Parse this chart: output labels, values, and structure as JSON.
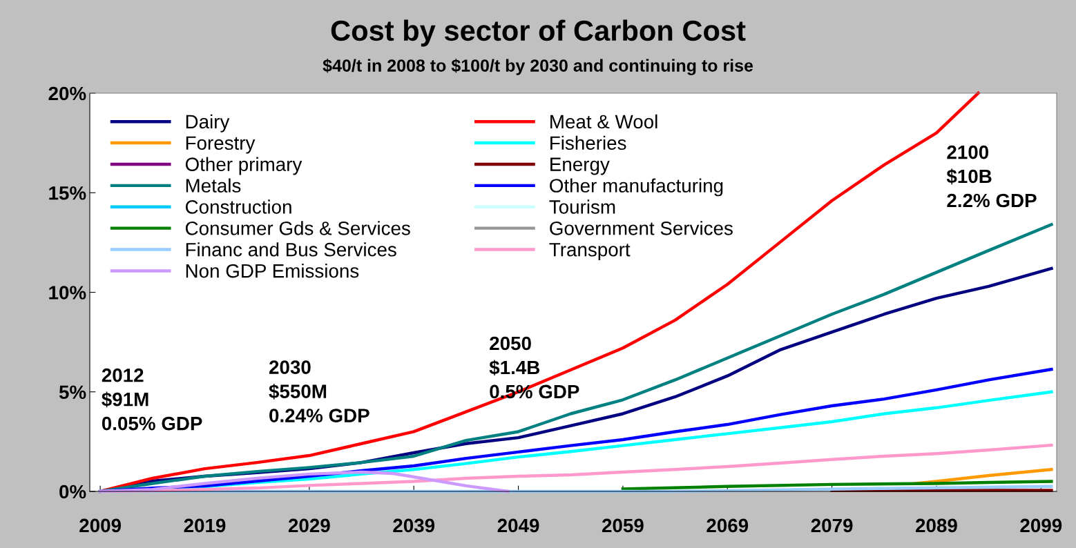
{
  "chart_data": {
    "type": "line",
    "title": "Cost by sector of Carbon Cost",
    "subtitle": "$40/t in 2008 to $100/t by 2030 and continuing to rise",
    "x": [
      2009,
      2014,
      2019,
      2024,
      2029,
      2034,
      2039,
      2044,
      2049,
      2054,
      2059,
      2064,
      2069,
      2074,
      2079,
      2084,
      2089,
      2094,
      2100
    ],
    "series": [
      {
        "name": "Dairy",
        "color": "#000080",
        "values": [
          0,
          0.52,
          0.76,
          0.94,
          1.14,
          1.45,
          1.94,
          2.4,
          2.7,
          3.3,
          3.9,
          4.75,
          5.8,
          7.1,
          8.0,
          8.9,
          9.7,
          10.3,
          11.2
        ]
      },
      {
        "name": "Meat & Wool",
        "color": "#ff0000",
        "x": [
          2009,
          2014,
          2019,
          2024,
          2029,
          2034,
          2039,
          2044,
          2049,
          2054,
          2059,
          2064,
          2069,
          2074,
          2079,
          2084,
          2089,
          2093
        ],
        "values": [
          0,
          0.66,
          1.14,
          1.45,
          1.8,
          2.4,
          3.0,
          4.0,
          5.0,
          6.1,
          7.2,
          8.6,
          10.4,
          12.5,
          14.6,
          16.4,
          18.0,
          20.0
        ]
      },
      {
        "name": "Forestry",
        "color": "#ff9900",
        "x": [
          2087,
          2089,
          2094,
          2100
        ],
        "values": [
          0.4,
          0.5,
          0.8,
          1.1
        ]
      },
      {
        "name": "Fisheries",
        "color": "#00ffff",
        "values": [
          0,
          0.1,
          0.24,
          0.45,
          0.62,
          0.87,
          1.1,
          1.4,
          1.73,
          2.0,
          2.3,
          2.6,
          2.9,
          3.2,
          3.5,
          3.9,
          4.2,
          4.57,
          5.0
        ]
      },
      {
        "name": "Other primary",
        "color": "#800080",
        "values": [
          null,
          null,
          null,
          null,
          null,
          null,
          null,
          null,
          null,
          null,
          null,
          null,
          null,
          null,
          null,
          null,
          null,
          null,
          null
        ]
      },
      {
        "name": "Energy",
        "color": "#800000",
        "x": [
          2079,
          2089,
          2100
        ],
        "values": [
          0.05,
          0.05,
          0.05
        ]
      },
      {
        "name": "Metals",
        "color": "#008080",
        "values": [
          0,
          0.4,
          0.76,
          1.0,
          1.2,
          1.45,
          1.77,
          2.56,
          3.0,
          3.9,
          4.6,
          5.6,
          6.7,
          7.8,
          8.9,
          9.9,
          11.0,
          12.1,
          13.4
        ]
      },
      {
        "name": "Other manufacturing",
        "color": "#0000ff",
        "values": [
          0,
          0.17,
          0.28,
          0.52,
          0.76,
          1.04,
          1.28,
          1.66,
          1.98,
          2.3,
          2.6,
          3.0,
          3.36,
          3.85,
          4.3,
          4.64,
          5.1,
          5.6,
          6.13
        ]
      },
      {
        "name": "Construction",
        "color": "#00ccff",
        "values": [
          null,
          null,
          null,
          null,
          null,
          null,
          null,
          null,
          null,
          null,
          null,
          null,
          null,
          null,
          null,
          null,
          null,
          null,
          null
        ]
      },
      {
        "name": "Tourism",
        "color": "#ccffff",
        "values": [
          null,
          null,
          null,
          null,
          null,
          null,
          null,
          null,
          null,
          null,
          null,
          null,
          null,
          null,
          null,
          null,
          null,
          null,
          null
        ]
      },
      {
        "name": "Consumer Gds & Services",
        "color": "#008000",
        "x": [
          2059,
          2069,
          2079,
          2089,
          2094,
          2100
        ],
        "values": [
          0.12,
          0.25,
          0.35,
          0.4,
          0.45,
          0.5
        ]
      },
      {
        "name": "Government Services",
        "color": "#969696",
        "values": [
          null,
          null,
          null,
          null,
          null,
          null,
          null,
          null,
          null,
          null,
          null,
          null,
          null,
          null,
          null,
          null,
          null,
          null,
          null
        ]
      },
      {
        "name": "Financ and Bus Services",
        "color": "#99ccff",
        "x": [
          2009,
          2029,
          2049,
          2064,
          2084,
          2100
        ],
        "values": [
          0.0,
          0.0,
          0.0,
          0.0,
          0.15,
          0.25
        ]
      },
      {
        "name": "Transport",
        "color": "#ff99cc",
        "values": [
          0,
          0.03,
          0.1,
          0.17,
          0.3,
          0.4,
          0.5,
          0.66,
          0.76,
          0.83,
          0.97,
          1.1,
          1.25,
          1.42,
          1.6,
          1.77,
          1.9,
          2.08,
          2.32
        ]
      },
      {
        "name": "Non GDP Emissions",
        "color": "#cc99ff",
        "x": [
          2009,
          2014,
          2019,
          2024,
          2029,
          2034,
          2037,
          2039,
          2044,
          2048
        ],
        "values": [
          0,
          0.1,
          0.4,
          0.66,
          0.87,
          0.97,
          0.9,
          0.73,
          0.28,
          0
        ]
      }
    ],
    "xlim": [
      2008,
      2100.5
    ],
    "xticks": [
      2009,
      2019,
      2029,
      2039,
      2049,
      2059,
      2069,
      2079,
      2089,
      2099
    ],
    "ylim": [
      0,
      20
    ],
    "yticks": [
      {
        "value": 0,
        "label": "0%"
      },
      {
        "value": 5,
        "label": "5%"
      },
      {
        "value": 10,
        "label": "10%"
      },
      {
        "value": 15,
        "label": "15%"
      },
      {
        "value": 20,
        "label": "20%"
      }
    ],
    "annotations": [
      "2012\n$91M\n0.05% GDP",
      "2030\n$550M\n0.24% GDP",
      "2050\n$1.4B\n0.5% GDP",
      "2100\n$10B\n2.2% GDP"
    ],
    "legend": "top left",
    "grid": false,
    "marker": "none",
    "line_style": "solid"
  }
}
